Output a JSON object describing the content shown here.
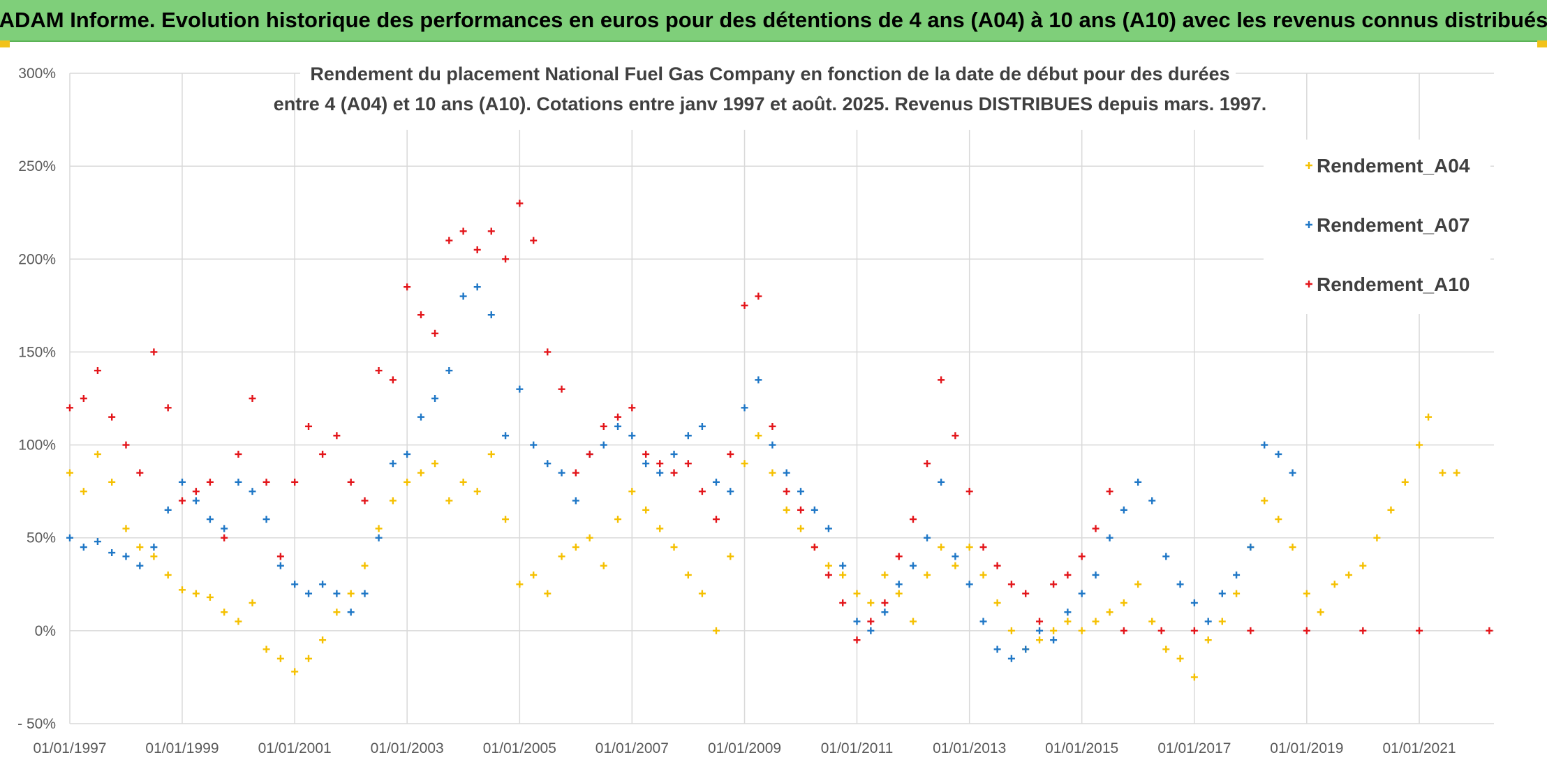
{
  "banner": {
    "title": "ADAM Informe. Evolution historique des performances en euros pour des détentions de 4 ans (A04) à 10 ans (A10) avec les revenus connus distribués",
    "background": "#7fcf7a"
  },
  "chart_data": {
    "type": "scatter",
    "title_lines": [
      "Rendement du placement National Fuel Gas Company en fonction de la date de début pour des durées",
      "entre 4 (A04) et 10 ans (A10). Cotations entre janv 1997 et août. 2025. Revenus DISTRIBUES depuis mars. 1997."
    ],
    "xlabel": "",
    "ylabel": "",
    "x_range": [
      "1997-01-01",
      "2022-05-01"
    ],
    "y_range": [
      -50,
      300
    ],
    "y_unit": "%",
    "y_ticks": [
      -50,
      0,
      50,
      100,
      150,
      200,
      250,
      300
    ],
    "y_tick_labels": [
      "- 50%",
      "0%",
      "50%",
      "100%",
      "150%",
      "200%",
      "250%",
      "300%"
    ],
    "x_ticks": [
      "1997-01-01",
      "1999-01-01",
      "2001-01-01",
      "2003-01-01",
      "2005-01-01",
      "2007-01-01",
      "2009-01-01",
      "2011-01-01",
      "2013-01-01",
      "2015-01-01",
      "2017-01-01",
      "2019-01-01",
      "2021-01-01"
    ],
    "x_tick_labels": [
      "01/01/1997",
      "01/01/1999",
      "01/01/2001",
      "01/01/2003",
      "01/01/2005",
      "01/01/2007",
      "01/01/2009",
      "01/01/2011",
      "01/01/2013",
      "01/01/2015",
      "01/01/2017",
      "01/01/2019",
      "01/01/2021"
    ],
    "grid": true,
    "legend_position": "top-right",
    "marker": "+",
    "series": [
      {
        "name": "Rendement_A04",
        "color": "#f5c000",
        "points": [
          [
            "1997-01-01",
            85
          ],
          [
            "1997-04-01",
            75
          ],
          [
            "1997-07-01",
            95
          ],
          [
            "1997-10-01",
            80
          ],
          [
            "1998-01-01",
            55
          ],
          [
            "1998-04-01",
            45
          ],
          [
            "1998-07-01",
            40
          ],
          [
            "1998-10-01",
            30
          ],
          [
            "1999-01-01",
            22
          ],
          [
            "1999-04-01",
            20
          ],
          [
            "1999-07-01",
            18
          ],
          [
            "1999-10-01",
            10
          ],
          [
            "2000-01-01",
            5
          ],
          [
            "2000-04-01",
            15
          ],
          [
            "2000-07-01",
            -10
          ],
          [
            "2000-10-01",
            -15
          ],
          [
            "2001-01-01",
            -22
          ],
          [
            "2001-04-01",
            -15
          ],
          [
            "2001-07-01",
            -5
          ],
          [
            "2001-10-01",
            10
          ],
          [
            "2002-01-01",
            20
          ],
          [
            "2002-04-01",
            35
          ],
          [
            "2002-07-01",
            55
          ],
          [
            "2002-10-01",
            70
          ],
          [
            "2003-01-01",
            80
          ],
          [
            "2003-04-01",
            85
          ],
          [
            "2003-07-01",
            90
          ],
          [
            "2003-10-01",
            70
          ],
          [
            "2004-01-01",
            80
          ],
          [
            "2004-04-01",
            75
          ],
          [
            "2004-07-01",
            95
          ],
          [
            "2004-10-01",
            60
          ],
          [
            "2005-01-01",
            25
          ],
          [
            "2005-04-01",
            30
          ],
          [
            "2005-07-01",
            20
          ],
          [
            "2005-10-01",
            40
          ],
          [
            "2006-01-01",
            45
          ],
          [
            "2006-04-01",
            50
          ],
          [
            "2006-07-01",
            35
          ],
          [
            "2006-10-01",
            60
          ],
          [
            "2007-01-01",
            75
          ],
          [
            "2007-04-01",
            65
          ],
          [
            "2007-07-01",
            55
          ],
          [
            "2007-10-01",
            45
          ],
          [
            "2008-01-01",
            30
          ],
          [
            "2008-04-01",
            20
          ],
          [
            "2008-07-01",
            0
          ],
          [
            "2008-10-01",
            40
          ],
          [
            "2009-01-01",
            90
          ],
          [
            "2009-04-01",
            105
          ],
          [
            "2009-07-01",
            85
          ],
          [
            "2009-10-01",
            65
          ],
          [
            "2010-01-01",
            55
          ],
          [
            "2010-04-01",
            45
          ],
          [
            "2010-07-01",
            35
          ],
          [
            "2010-10-01",
            30
          ],
          [
            "2011-01-01",
            20
          ],
          [
            "2011-04-01",
            15
          ],
          [
            "2011-07-01",
            30
          ],
          [
            "2011-10-01",
            20
          ],
          [
            "2012-01-01",
            5
          ],
          [
            "2012-04-01",
            30
          ],
          [
            "2012-07-01",
            45
          ],
          [
            "2012-10-01",
            35
          ],
          [
            "2013-01-01",
            45
          ],
          [
            "2013-04-01",
            30
          ],
          [
            "2013-07-01",
            15
          ],
          [
            "2013-10-01",
            0
          ],
          [
            "2014-01-01",
            -10
          ],
          [
            "2014-04-01",
            -5
          ],
          [
            "2014-07-01",
            0
          ],
          [
            "2014-10-01",
            5
          ],
          [
            "2015-01-01",
            0
          ],
          [
            "2015-04-01",
            5
          ],
          [
            "2015-07-01",
            10
          ],
          [
            "2015-10-01",
            15
          ],
          [
            "2016-01-01",
            25
          ],
          [
            "2016-04-01",
            5
          ],
          [
            "2016-07-01",
            -10
          ],
          [
            "2016-10-01",
            -15
          ],
          [
            "2017-01-01",
            -25
          ],
          [
            "2017-04-01",
            -5
          ],
          [
            "2017-07-01",
            5
          ],
          [
            "2017-10-01",
            20
          ],
          [
            "2018-01-01",
            45
          ],
          [
            "2018-04-01",
            70
          ],
          [
            "2018-07-01",
            60
          ],
          [
            "2018-10-01",
            45
          ],
          [
            "2019-01-01",
            20
          ],
          [
            "2019-04-01",
            10
          ],
          [
            "2019-07-01",
            25
          ],
          [
            "2019-10-01",
            30
          ],
          [
            "2020-01-01",
            35
          ],
          [
            "2020-04-01",
            50
          ],
          [
            "2020-07-01",
            65
          ],
          [
            "2020-10-01",
            80
          ],
          [
            "2021-01-01",
            100
          ],
          [
            "2021-03-01",
            115
          ],
          [
            "2021-06-01",
            85
          ],
          [
            "2021-09-01",
            85
          ]
        ]
      },
      {
        "name": "Rendement_A07",
        "color": "#1f77c6",
        "points": [
          [
            "1997-01-01",
            50
          ],
          [
            "1997-04-01",
            45
          ],
          [
            "1997-07-01",
            48
          ],
          [
            "1997-10-01",
            42
          ],
          [
            "1998-01-01",
            40
          ],
          [
            "1998-04-01",
            35
          ],
          [
            "1998-07-01",
            45
          ],
          [
            "1998-10-01",
            65
          ],
          [
            "1999-01-01",
            80
          ],
          [
            "1999-04-01",
            70
          ],
          [
            "1999-07-01",
            60
          ],
          [
            "1999-10-01",
            55
          ],
          [
            "2000-01-01",
            80
          ],
          [
            "2000-04-01",
            75
          ],
          [
            "2000-07-01",
            60
          ],
          [
            "2000-10-01",
            35
          ],
          [
            "2001-01-01",
            25
          ],
          [
            "2001-04-01",
            20
          ],
          [
            "2001-07-01",
            25
          ],
          [
            "2001-10-01",
            20
          ],
          [
            "2002-01-01",
            10
          ],
          [
            "2002-04-01",
            20
          ],
          [
            "2002-07-01",
            50
          ],
          [
            "2002-10-01",
            90
          ],
          [
            "2003-01-01",
            95
          ],
          [
            "2003-04-01",
            115
          ],
          [
            "2003-07-01",
            125
          ],
          [
            "2003-10-01",
            140
          ],
          [
            "2004-01-01",
            180
          ],
          [
            "2004-04-01",
            185
          ],
          [
            "2004-07-01",
            170
          ],
          [
            "2004-10-01",
            105
          ],
          [
            "2005-01-01",
            130
          ],
          [
            "2005-04-01",
            100
          ],
          [
            "2005-07-01",
            90
          ],
          [
            "2005-10-01",
            85
          ],
          [
            "2006-01-01",
            70
          ],
          [
            "2006-04-01",
            95
          ],
          [
            "2006-07-01",
            100
          ],
          [
            "2006-10-01",
            110
          ],
          [
            "2007-01-01",
            105
          ],
          [
            "2007-04-01",
            90
          ],
          [
            "2007-07-01",
            85
          ],
          [
            "2007-10-01",
            95
          ],
          [
            "2008-01-01",
            105
          ],
          [
            "2008-04-01",
            110
          ],
          [
            "2008-07-01",
            80
          ],
          [
            "2008-10-01",
            75
          ],
          [
            "2009-01-01",
            120
          ],
          [
            "2009-04-01",
            135
          ],
          [
            "2009-07-01",
            100
          ],
          [
            "2009-10-01",
            85
          ],
          [
            "2010-01-01",
            75
          ],
          [
            "2010-04-01",
            65
          ],
          [
            "2010-07-01",
            55
          ],
          [
            "2010-10-01",
            35
          ],
          [
            "2011-01-01",
            5
          ],
          [
            "2011-04-01",
            0
          ],
          [
            "2011-07-01",
            10
          ],
          [
            "2011-10-01",
            25
          ],
          [
            "2012-01-01",
            35
          ],
          [
            "2012-04-01",
            50
          ],
          [
            "2012-07-01",
            80
          ],
          [
            "2012-10-01",
            40
          ],
          [
            "2013-01-01",
            25
          ],
          [
            "2013-04-01",
            5
          ],
          [
            "2013-07-01",
            -10
          ],
          [
            "2013-10-01",
            -15
          ],
          [
            "2014-01-01",
            -10
          ],
          [
            "2014-04-01",
            0
          ],
          [
            "2014-07-01",
            -5
          ],
          [
            "2014-10-01",
            10
          ],
          [
            "2015-01-01",
            20
          ],
          [
            "2015-04-01",
            30
          ],
          [
            "2015-07-01",
            50
          ],
          [
            "2015-10-01",
            65
          ],
          [
            "2016-01-01",
            80
          ],
          [
            "2016-04-01",
            70
          ],
          [
            "2016-07-01",
            40
          ],
          [
            "2016-10-01",
            25
          ],
          [
            "2017-01-01",
            15
          ],
          [
            "2017-04-01",
            5
          ],
          [
            "2017-07-01",
            20
          ],
          [
            "2017-10-01",
            30
          ],
          [
            "2018-01-01",
            45
          ],
          [
            "2018-04-01",
            100
          ],
          [
            "2018-07-01",
            95
          ],
          [
            "2018-10-01",
            85
          ]
        ]
      },
      {
        "name": "Rendement_A10",
        "color": "#e3151a",
        "points": [
          [
            "1997-01-01",
            120
          ],
          [
            "1997-04-01",
            125
          ],
          [
            "1997-07-01",
            140
          ],
          [
            "1997-10-01",
            115
          ],
          [
            "1998-01-01",
            100
          ],
          [
            "1998-04-01",
            85
          ],
          [
            "1998-07-01",
            150
          ],
          [
            "1998-10-01",
            120
          ],
          [
            "1999-01-01",
            70
          ],
          [
            "1999-04-01",
            75
          ],
          [
            "1999-07-01",
            80
          ],
          [
            "1999-10-01",
            50
          ],
          [
            "2000-01-01",
            95
          ],
          [
            "2000-04-01",
            125
          ],
          [
            "2000-07-01",
            80
          ],
          [
            "2000-10-01",
            40
          ],
          [
            "2001-01-01",
            80
          ],
          [
            "2001-04-01",
            110
          ],
          [
            "2001-07-01",
            95
          ],
          [
            "2001-10-01",
            105
          ],
          [
            "2002-01-01",
            80
          ],
          [
            "2002-04-01",
            70
          ],
          [
            "2002-07-01",
            140
          ],
          [
            "2002-10-01",
            135
          ],
          [
            "2003-01-01",
            185
          ],
          [
            "2003-04-01",
            170
          ],
          [
            "2003-07-01",
            160
          ],
          [
            "2003-10-01",
            210
          ],
          [
            "2004-01-01",
            215
          ],
          [
            "2004-04-01",
            205
          ],
          [
            "2004-07-01",
            215
          ],
          [
            "2004-10-01",
            200
          ],
          [
            "2005-01-01",
            230
          ],
          [
            "2005-04-01",
            210
          ],
          [
            "2005-07-01",
            150
          ],
          [
            "2005-10-01",
            130
          ],
          [
            "2006-01-01",
            85
          ],
          [
            "2006-04-01",
            95
          ],
          [
            "2006-07-01",
            110
          ],
          [
            "2006-10-01",
            115
          ],
          [
            "2007-01-01",
            120
          ],
          [
            "2007-04-01",
            95
          ],
          [
            "2007-07-01",
            90
          ],
          [
            "2007-10-01",
            85
          ],
          [
            "2008-01-01",
            90
          ],
          [
            "2008-04-01",
            75
          ],
          [
            "2008-07-01",
            60
          ],
          [
            "2008-10-01",
            95
          ],
          [
            "2009-01-01",
            175
          ],
          [
            "2009-04-01",
            180
          ],
          [
            "2009-07-01",
            110
          ],
          [
            "2009-10-01",
            75
          ],
          [
            "2010-01-01",
            65
          ],
          [
            "2010-04-01",
            45
          ],
          [
            "2010-07-01",
            30
          ],
          [
            "2010-10-01",
            15
          ],
          [
            "2011-01-01",
            -5
          ],
          [
            "2011-04-01",
            5
          ],
          [
            "2011-07-01",
            15
          ],
          [
            "2011-10-01",
            40
          ],
          [
            "2012-01-01",
            60
          ],
          [
            "2012-04-01",
            90
          ],
          [
            "2012-07-01",
            135
          ],
          [
            "2012-10-01",
            105
          ],
          [
            "2013-01-01",
            75
          ],
          [
            "2013-04-01",
            45
          ],
          [
            "2013-07-01",
            35
          ],
          [
            "2013-10-01",
            25
          ],
          [
            "2014-01-01",
            20
          ],
          [
            "2014-04-01",
            5
          ],
          [
            "2014-07-01",
            25
          ],
          [
            "2014-10-01",
            30
          ],
          [
            "2015-01-01",
            40
          ],
          [
            "2015-04-01",
            55
          ],
          [
            "2015-07-01",
            75
          ],
          [
            "2015-10-01",
            0
          ],
          [
            "2016-06-01",
            0
          ],
          [
            "2017-01-01",
            0
          ],
          [
            "2018-01-01",
            0
          ],
          [
            "2019-01-01",
            0
          ],
          [
            "2020-01-01",
            0
          ],
          [
            "2021-01-01",
            0
          ],
          [
            "2022-04-01",
            0
          ]
        ]
      }
    ]
  }
}
